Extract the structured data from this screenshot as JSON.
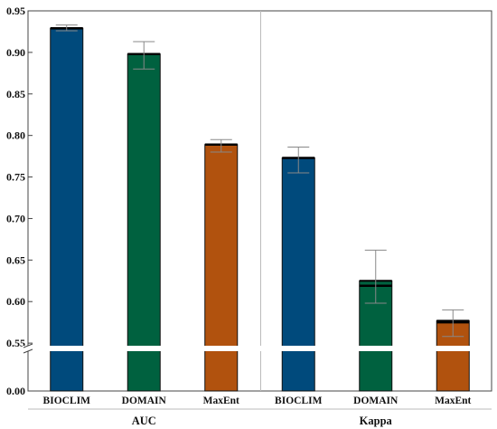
{
  "chart_data": {
    "type": "bar",
    "title": "",
    "xlabel": "",
    "ylabel": "",
    "y_axis_break": true,
    "ylim_upper": [
      0.5,
      0.95
    ],
    "ylim_lower": [
      0.0,
      0.0
    ],
    "yticks": [
      {
        "value": 0.0,
        "label": "0.00"
      },
      {
        "value": 0.55,
        "label": "0.55"
      },
      {
        "value": 0.6,
        "label": "0.60"
      },
      {
        "value": 0.65,
        "label": "0.65"
      },
      {
        "value": 0.7,
        "label": "0.70"
      },
      {
        "value": 0.75,
        "label": "0.75"
      },
      {
        "value": 0.8,
        "label": "0.80"
      },
      {
        "value": 0.85,
        "label": "0.85"
      },
      {
        "value": 0.9,
        "label": "0.90"
      },
      {
        "value": 0.95,
        "label": "0.95"
      }
    ],
    "groups": [
      {
        "label": "AUC",
        "bars": [
          {
            "category": "BIOCLIM",
            "value": 0.929,
            "err_low": 0.926,
            "err_high": 0.933,
            "color": "#004a7c"
          },
          {
            "category": "DOMAIN",
            "value": 0.898,
            "err_low": 0.88,
            "err_high": 0.913,
            "color": "#00613f"
          },
          {
            "category": "MaxEnt",
            "value": 0.789,
            "err_low": 0.78,
            "err_high": 0.795,
            "color": "#b1520e"
          }
        ]
      },
      {
        "label": "Kappa",
        "bars": [
          {
            "category": "BIOCLIM",
            "value": 0.773,
            "err_low": 0.755,
            "err_high": 0.786,
            "color": "#004a7c"
          },
          {
            "category": "DOMAIN",
            "value": 0.625,
            "err_low": 0.598,
            "err_high": 0.662,
            "color": "#00613f"
          },
          {
            "category": "MaxEnt",
            "value": 0.577,
            "err_low": 0.558,
            "err_high": 0.59,
            "color": "#b1520e"
          }
        ]
      }
    ],
    "mean_lines": [
      [
        0.929,
        0.898,
        0.789
      ],
      [
        0.773,
        0.619,
        0.575
      ]
    ],
    "grid": false,
    "legend": "none",
    "colors": {
      "bioclim": "#004a7c",
      "domain": "#00613f",
      "maxent": "#b1520e"
    }
  }
}
